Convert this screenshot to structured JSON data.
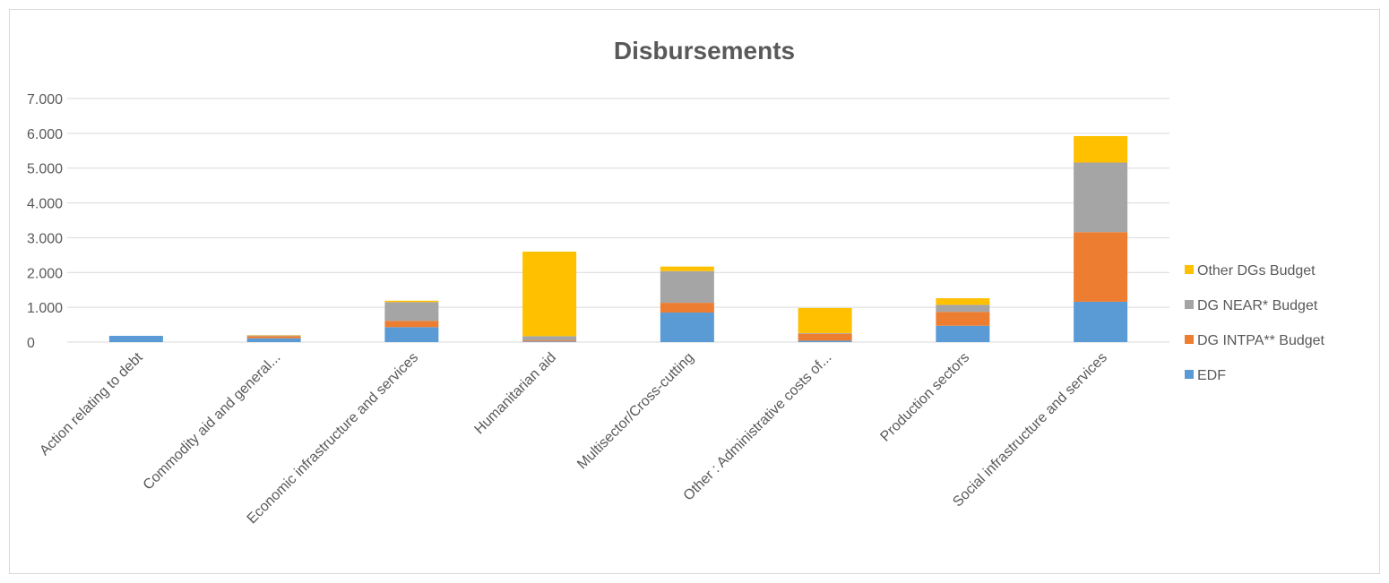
{
  "chart_data": {
    "type": "bar",
    "stacked": true,
    "title": "Disbursements",
    "xlabel": "",
    "ylabel": "",
    "ylim": [
      0,
      7000
    ],
    "yticks": [
      0,
      1000,
      2000,
      3000,
      4000,
      5000,
      6000,
      7000
    ],
    "ytick_labels": [
      "0",
      "1.000",
      "2.000",
      "3.000",
      "4.000",
      "5.000",
      "6.000",
      "7.000"
    ],
    "grid": true,
    "legend_position": "right",
    "categories": [
      "Action relating to debt",
      "Commodity aid and general...",
      "Economic infrastructure and services",
      "Humanitarian aid",
      "Multisector/Cross-cutting",
      "Other : Administrative costs of...",
      "Production sectors",
      "Social infrastructure and services"
    ],
    "series": [
      {
        "name": "EDF",
        "color": "#5b9bd5",
        "values": [
          180,
          110,
          430,
          20,
          850,
          40,
          470,
          1160
        ]
      },
      {
        "name": "DG INTPA** Budget",
        "color": "#ed7d31",
        "values": [
          0,
          60,
          180,
          30,
          280,
          200,
          400,
          2000
        ]
      },
      {
        "name": "DG NEAR* Budget",
        "color": "#a5a5a5",
        "values": [
          0,
          20,
          540,
          120,
          910,
          20,
          200,
          2000
        ]
      },
      {
        "name": "Other DGs Budget",
        "color": "#ffc000",
        "values": [
          0,
          10,
          40,
          2430,
          130,
          720,
          190,
          760
        ]
      }
    ],
    "legend_order": [
      "Other DGs Budget",
      "DG NEAR* Budget",
      "DG INTPA** Budget",
      "EDF"
    ]
  }
}
